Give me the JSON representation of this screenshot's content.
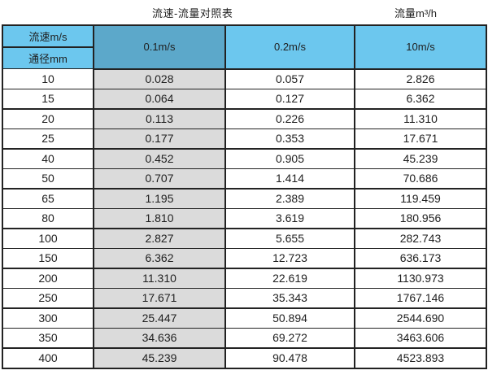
{
  "page": {
    "title": "流速-流量对照表",
    "unit_label": "流量m³/h"
  },
  "table": {
    "header": {
      "corner_top": "流速m/s",
      "corner_bottom": "通径mm",
      "columns": [
        "0.1m/s",
        "0.2m/s",
        "10m/s"
      ]
    },
    "rows": [
      {
        "dn": "10",
        "v1": "0.028",
        "v2": "0.057",
        "v3": "2.826"
      },
      {
        "dn": "15",
        "v1": "0.064",
        "v2": "0.127",
        "v3": "6.362"
      },
      {
        "dn": "20",
        "v1": "0.113",
        "v2": "0.226",
        "v3": "11.310"
      },
      {
        "dn": "25",
        "v1": "0.177",
        "v2": "0.353",
        "v3": "17.671"
      },
      {
        "dn": "40",
        "v1": "0.452",
        "v2": "0.905",
        "v3": "45.239"
      },
      {
        "dn": "50",
        "v1": "0.707",
        "v2": "1.414",
        "v3": "70.686"
      },
      {
        "dn": "65",
        "v1": "1.195",
        "v2": "2.389",
        "v3": "119.459"
      },
      {
        "dn": "80",
        "v1": "1.810",
        "v2": "3.619",
        "v3": "180.956"
      },
      {
        "dn": "100",
        "v1": "2.827",
        "v2": "5.655",
        "v3": "282.743"
      },
      {
        "dn": "150",
        "v1": "6.362",
        "v2": "12.723",
        "v3": "636.173"
      },
      {
        "dn": "200",
        "v1": "11.310",
        "v2": "22.619",
        "v3": "1130.973"
      },
      {
        "dn": "250",
        "v1": "17.671",
        "v2": "35.343",
        "v3": "1767.146"
      },
      {
        "dn": "300",
        "v1": "25.447",
        "v2": "50.894",
        "v3": "2544.690"
      },
      {
        "dn": "350",
        "v1": "34.636",
        "v2": "69.272",
        "v3": "3463.606"
      },
      {
        "dn": "400",
        "v1": "45.239",
        "v2": "90.478",
        "v3": "4523.893"
      }
    ]
  },
  "colors": {
    "light_blue": "#6cc7ee",
    "dark_blue": "#5ca8ca",
    "gray": "#dbdbdb",
    "border": "#222222",
    "text": "#1f1f1f"
  }
}
